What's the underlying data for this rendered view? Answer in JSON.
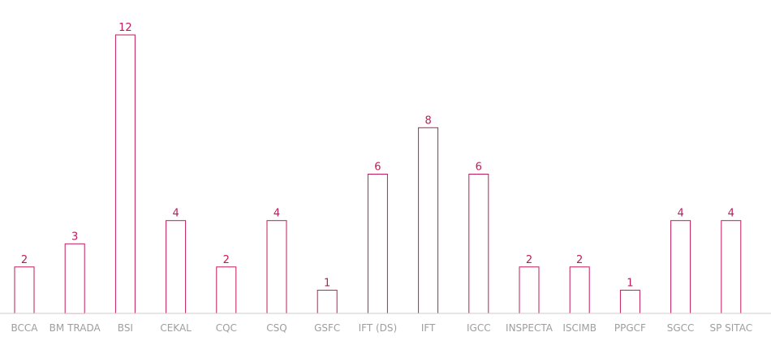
{
  "chart_data": {
    "type": "bar",
    "categories": [
      "BCCA",
      "BM TRADA",
      "BSI",
      "CEKAL",
      "CQC",
      "CSQ",
      "GSFC",
      "IFT (DS)",
      "IFT",
      "IGCC",
      "INSPECTA",
      "ISCIMB",
      "PPGCF",
      "SGCC",
      "SP SITAC"
    ],
    "values": [
      2,
      3,
      12,
      4,
      2,
      4,
      1,
      6,
      8,
      6,
      2,
      2,
      1,
      4,
      4
    ],
    "ylim": [
      0,
      12
    ],
    "grid": false,
    "legend": "none",
    "colors": {
      "bar_stroke": "#c2185b",
      "label": "#c2185b",
      "tick": "#9e9e9e"
    }
  }
}
